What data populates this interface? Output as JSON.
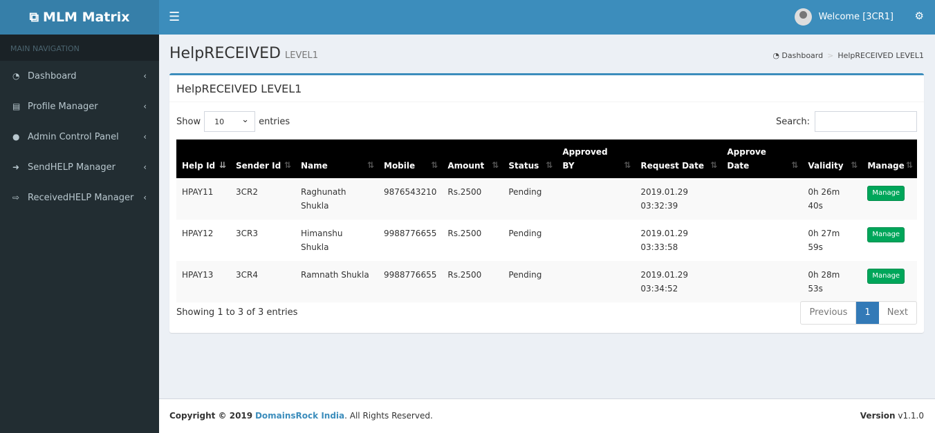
{
  "app": {
    "logo": "MLM Matrix",
    "welcome": "Welcome [3CR1]"
  },
  "sidebar": {
    "header": "MAIN NAVIGATION",
    "items": [
      {
        "label": "Dashboard",
        "icon": "dashboard-icon"
      },
      {
        "label": "Profile Manager",
        "icon": "id-card-icon"
      },
      {
        "label": "Admin Control Panel",
        "icon": "user-icon"
      },
      {
        "label": "SendHELP Manager",
        "icon": "sign-in-icon"
      },
      {
        "label": "ReceivedHELP Manager",
        "icon": "sign-out-icon"
      }
    ]
  },
  "page": {
    "title": "HelpRECEIVED",
    "subtitle": "LEVEL1",
    "breadcrumb": [
      "Dashboard",
      "HelpRECEIVED LEVEL1"
    ]
  },
  "box": {
    "title": "HelpRECEIVED LEVEL1",
    "show": "Show",
    "entries_value": "10",
    "entries": "entries",
    "search": "Search:",
    "search_value": ""
  },
  "table": {
    "headers": [
      "Help Id",
      "Sender Id",
      "Name",
      "Mobile",
      "Amount",
      "Status",
      "Approved BY",
      "Request Date",
      "Approve Date",
      "Validity",
      "Manage"
    ],
    "rows": [
      {
        "id": "HPAY11",
        "sender": "3CR2",
        "name": "Raghunath Shukla",
        "mobile": "9876543210",
        "amount": "Rs.2500",
        "status": "Pending",
        "approved_by": "",
        "request_date": "2019.01.29 03:32:39",
        "approve_date": "",
        "validity": "0h 26m 40s",
        "manage": "Manage"
      },
      {
        "id": "HPAY12",
        "sender": "3CR3",
        "name": "Himanshu Shukla",
        "mobile": "9988776655",
        "amount": "Rs.2500",
        "status": "Pending",
        "approved_by": "",
        "request_date": "2019.01.29 03:33:58",
        "approve_date": "",
        "validity": "0h 27m 59s",
        "manage": "Manage"
      },
      {
        "id": "HPAY13",
        "sender": "3CR4",
        "name": "Ramnath Shukla",
        "mobile": "9988776655",
        "amount": "Rs.2500",
        "status": "Pending",
        "approved_by": "",
        "request_date": "2019.01.29 03:34:52",
        "approve_date": "",
        "validity": "0h 28m 53s",
        "manage": "Manage"
      }
    ]
  },
  "pagination": {
    "info": "Showing 1 to 3 of 3 entries",
    "previous": "Previous",
    "current": "1",
    "next": "Next"
  },
  "footer": {
    "copyright": "Copyright © 2019",
    "company": "DomainsRock India",
    "rights": ". All Rights Reserved.",
    "version_label": "Version",
    "version": "v1.1.0"
  }
}
